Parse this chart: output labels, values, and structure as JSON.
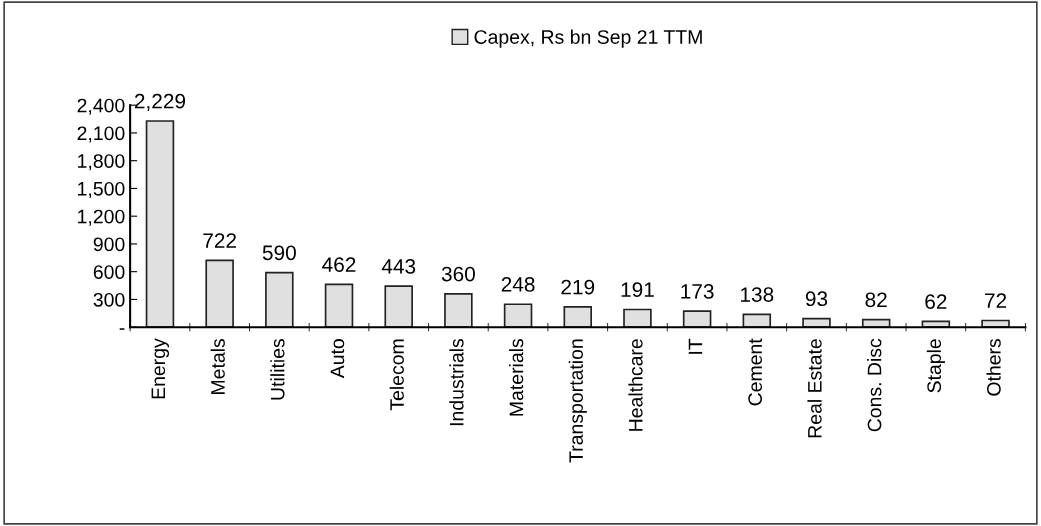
{
  "chart_data": {
    "type": "bar",
    "categories": [
      "Energy",
      "Metals",
      "Utilities",
      "Auto",
      "Telecom",
      "Industrials",
      "Materials",
      "Transportation",
      "Healthcare",
      "IT",
      "Cement",
      "Real Estate",
      "Cons. Disc",
      "Staple",
      "Others"
    ],
    "series": [
      {
        "name": "Capex, Rs bn Sep 21 TTM",
        "color": "#e0e0e0",
        "values": [
          2229,
          722,
          590,
          462,
          443,
          360,
          248,
          219,
          191,
          173,
          138,
          93,
          82,
          62,
          72
        ]
      }
    ],
    "ylim": [
      0,
      2400
    ],
    "yticks": [
      {
        "value": 0,
        "label": "-"
      },
      300,
      600,
      900,
      {
        "value": 1200,
        "label": "1,200"
      },
      {
        "value": 1500,
        "label": "1,500"
      },
      {
        "value": 1800,
        "label": "1,800"
      },
      {
        "value": 2100,
        "label": "2,100"
      },
      {
        "value": 2400,
        "label": "2,400"
      }
    ],
    "value_labels": [
      "2,229",
      "722",
      "590",
      "462",
      "443",
      "360",
      "248",
      "219",
      "191",
      "173",
      "138",
      "93",
      "82",
      "62",
      "72"
    ],
    "legend": "top",
    "grid": false
  }
}
